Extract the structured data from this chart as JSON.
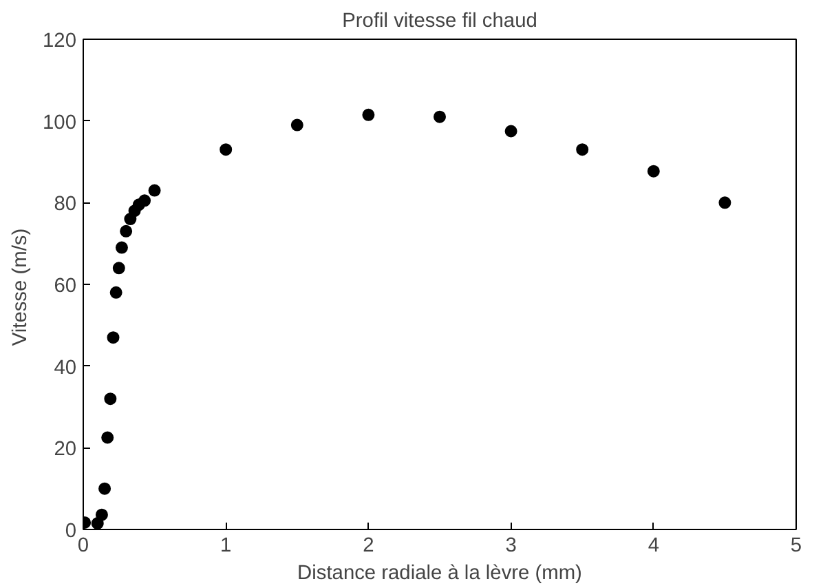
{
  "chart_data": {
    "type": "scatter",
    "title": "Profil vitesse fil chaud",
    "xlabel": "Distance radiale à la lèvre (mm)",
    "ylabel": "Vitesse  (m/s)",
    "x": [
      0.01,
      0.1,
      0.13,
      0.15,
      0.17,
      0.19,
      0.21,
      0.23,
      0.25,
      0.27,
      0.3,
      0.33,
      0.36,
      0.39,
      0.43,
      0.5,
      1,
      1.5,
      2,
      2.5,
      3,
      3.5,
      4,
      4.5
    ],
    "values": [
      1.7,
      1.5,
      3.6,
      10,
      22.5,
      32,
      47,
      58,
      64,
      69,
      73,
      76,
      78,
      79.5,
      80.5,
      83,
      93,
      99,
      101.5,
      101,
      97.5,
      93,
      87.7,
      80
    ],
    "color": "#000000",
    "marker": "circle",
    "xlim": [
      0,
      5
    ],
    "ylim": [
      0,
      120
    ],
    "xticks": [
      0,
      1,
      2,
      3,
      4,
      5
    ],
    "yticks": [
      0,
      20,
      40,
      60,
      80,
      100,
      120
    ],
    "grid": false
  }
}
